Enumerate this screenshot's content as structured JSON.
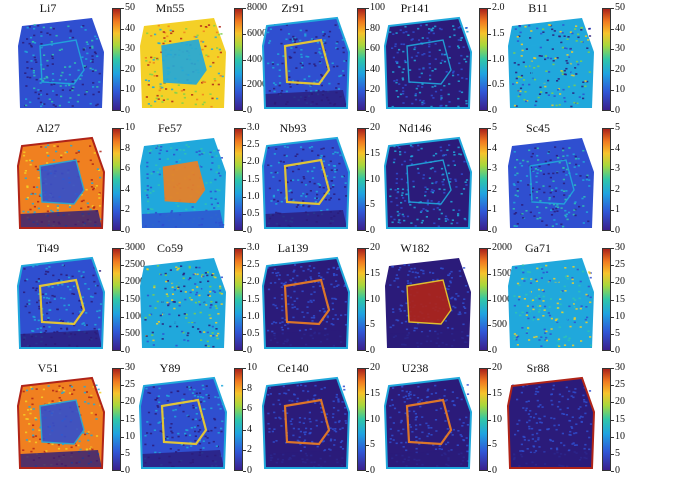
{
  "figure": {
    "panels": [
      {
        "title": "Li7",
        "ticks": [
          "50",
          "40",
          "30",
          "20",
          "10",
          "0"
        ],
        "scheme": "low"
      },
      {
        "title": "Mn55",
        "ticks": [
          "8000",
          "6000",
          "4000",
          "2000",
          "0"
        ],
        "scheme": "mn"
      },
      {
        "title": "Zr91",
        "ticks": [
          "100",
          "80",
          "60",
          "40",
          "20",
          "0"
        ],
        "scheme": "rim"
      },
      {
        "title": "Pr141",
        "ticks": [
          "2.0",
          "1.5",
          "1.0",
          "0.5",
          "0"
        ],
        "scheme": "rimsparse"
      },
      {
        "title": "B11",
        "ticks": [
          "50",
          "40",
          "30",
          "20",
          "10",
          "0"
        ],
        "scheme": "noisy"
      },
      {
        "title": "Al27",
        "ticks": [
          "10",
          "8",
          "6",
          "4",
          "2",
          "0"
        ],
        "scheme": "al"
      },
      {
        "title": "Fe57",
        "ticks": [
          "3.0",
          "2.5",
          "2.0",
          "1.5",
          "1.0",
          "0.5",
          "0"
        ],
        "scheme": "fe"
      },
      {
        "title": "Nb93",
        "ticks": [
          "20",
          "15",
          "10",
          "5",
          "0"
        ],
        "scheme": "rim"
      },
      {
        "title": "Nd146",
        "ticks": [
          "5",
          "4",
          "3",
          "2",
          "1",
          "0"
        ],
        "scheme": "rimsparse"
      },
      {
        "title": "Sc45",
        "ticks": [
          "5",
          "4",
          "3",
          "2",
          "1",
          "0"
        ],
        "scheme": "low"
      },
      {
        "title": "Ti49",
        "ticks": [
          "3000",
          "2500",
          "2000",
          "1500",
          "1000",
          "500",
          "0"
        ],
        "scheme": "rim"
      },
      {
        "title": "Co59",
        "ticks": [
          "3.0",
          "2.5",
          "2.0",
          "1.5",
          "1.0",
          "0.5",
          "0"
        ],
        "scheme": "noisy"
      },
      {
        "title": "La139",
        "ticks": [
          "20",
          "15",
          "10",
          "5",
          "0"
        ],
        "scheme": "core"
      },
      {
        "title": "W182",
        "ticks": [
          "2000",
          "1500",
          "1000",
          "500",
          "0"
        ],
        "scheme": "w"
      },
      {
        "title": "Ga71",
        "ticks": [
          "30",
          "25",
          "20",
          "15",
          "10",
          "5",
          "0"
        ],
        "scheme": "ga"
      },
      {
        "title": "V51",
        "ticks": [
          "30",
          "25",
          "20",
          "15",
          "10",
          "5",
          "0"
        ],
        "scheme": "al"
      },
      {
        "title": "Y89",
        "ticks": [
          "10",
          "8",
          "6",
          "4",
          "2",
          "0"
        ],
        "scheme": "rim"
      },
      {
        "title": "Ce140",
        "ticks": [
          "20",
          "15",
          "10",
          "5",
          "0"
        ],
        "scheme": "core"
      },
      {
        "title": "U238",
        "ticks": [
          "20",
          "15",
          "10",
          "5",
          "0"
        ],
        "scheme": "core"
      },
      {
        "title": "Sr88",
        "ticks": [
          "30",
          "25",
          "20",
          "15",
          "10",
          "5",
          "0"
        ],
        "scheme": "sr"
      }
    ]
  }
}
